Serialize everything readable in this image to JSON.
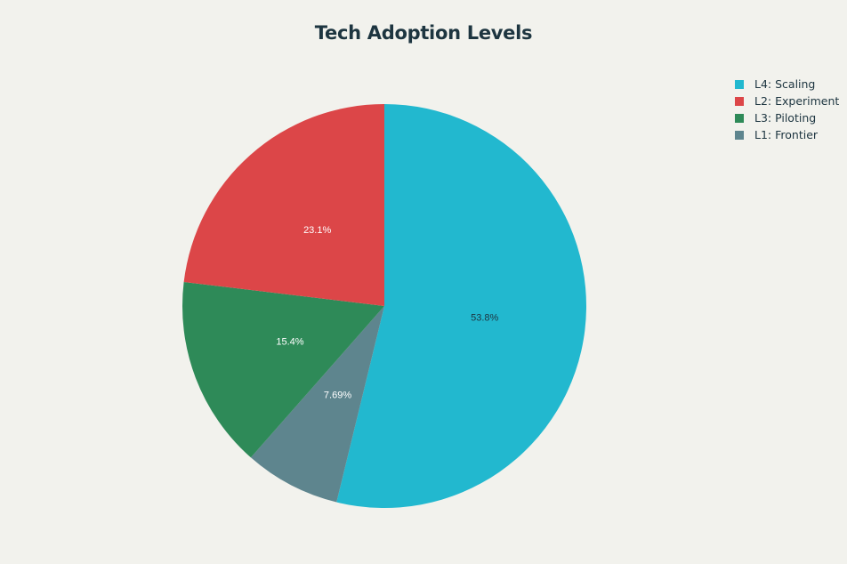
{
  "chart_data": {
    "type": "pie",
    "title": "Tech Adoption Levels",
    "slices": [
      {
        "label": "L4: Scaling",
        "value": 53.8,
        "display": "53.8%",
        "color": "#22b8cf",
        "text_color": "#1d3540"
      },
      {
        "label": "L1: Frontier",
        "value": 7.69,
        "display": "7.69%",
        "color": "#5e858e",
        "text_color": "#ffffff"
      },
      {
        "label": "L3: Piloting",
        "value": 15.4,
        "display": "15.4%",
        "color": "#2e8a58",
        "text_color": "#ffffff"
      },
      {
        "label": "L2: Experiment",
        "value": 23.1,
        "display": "23.1%",
        "color": "#dc4648",
        "text_color": "#ffffff"
      }
    ],
    "legend": {
      "position": "top-right",
      "entries": [
        {
          "label": "L4: Scaling",
          "color": "#22b8cf"
        },
        {
          "label": "L2: Experiment",
          "color": "#dc4648"
        },
        {
          "label": "L3: Piloting",
          "color": "#2e8a58"
        },
        {
          "label": "L1: Frontier",
          "color": "#5e858e"
        }
      ]
    }
  }
}
